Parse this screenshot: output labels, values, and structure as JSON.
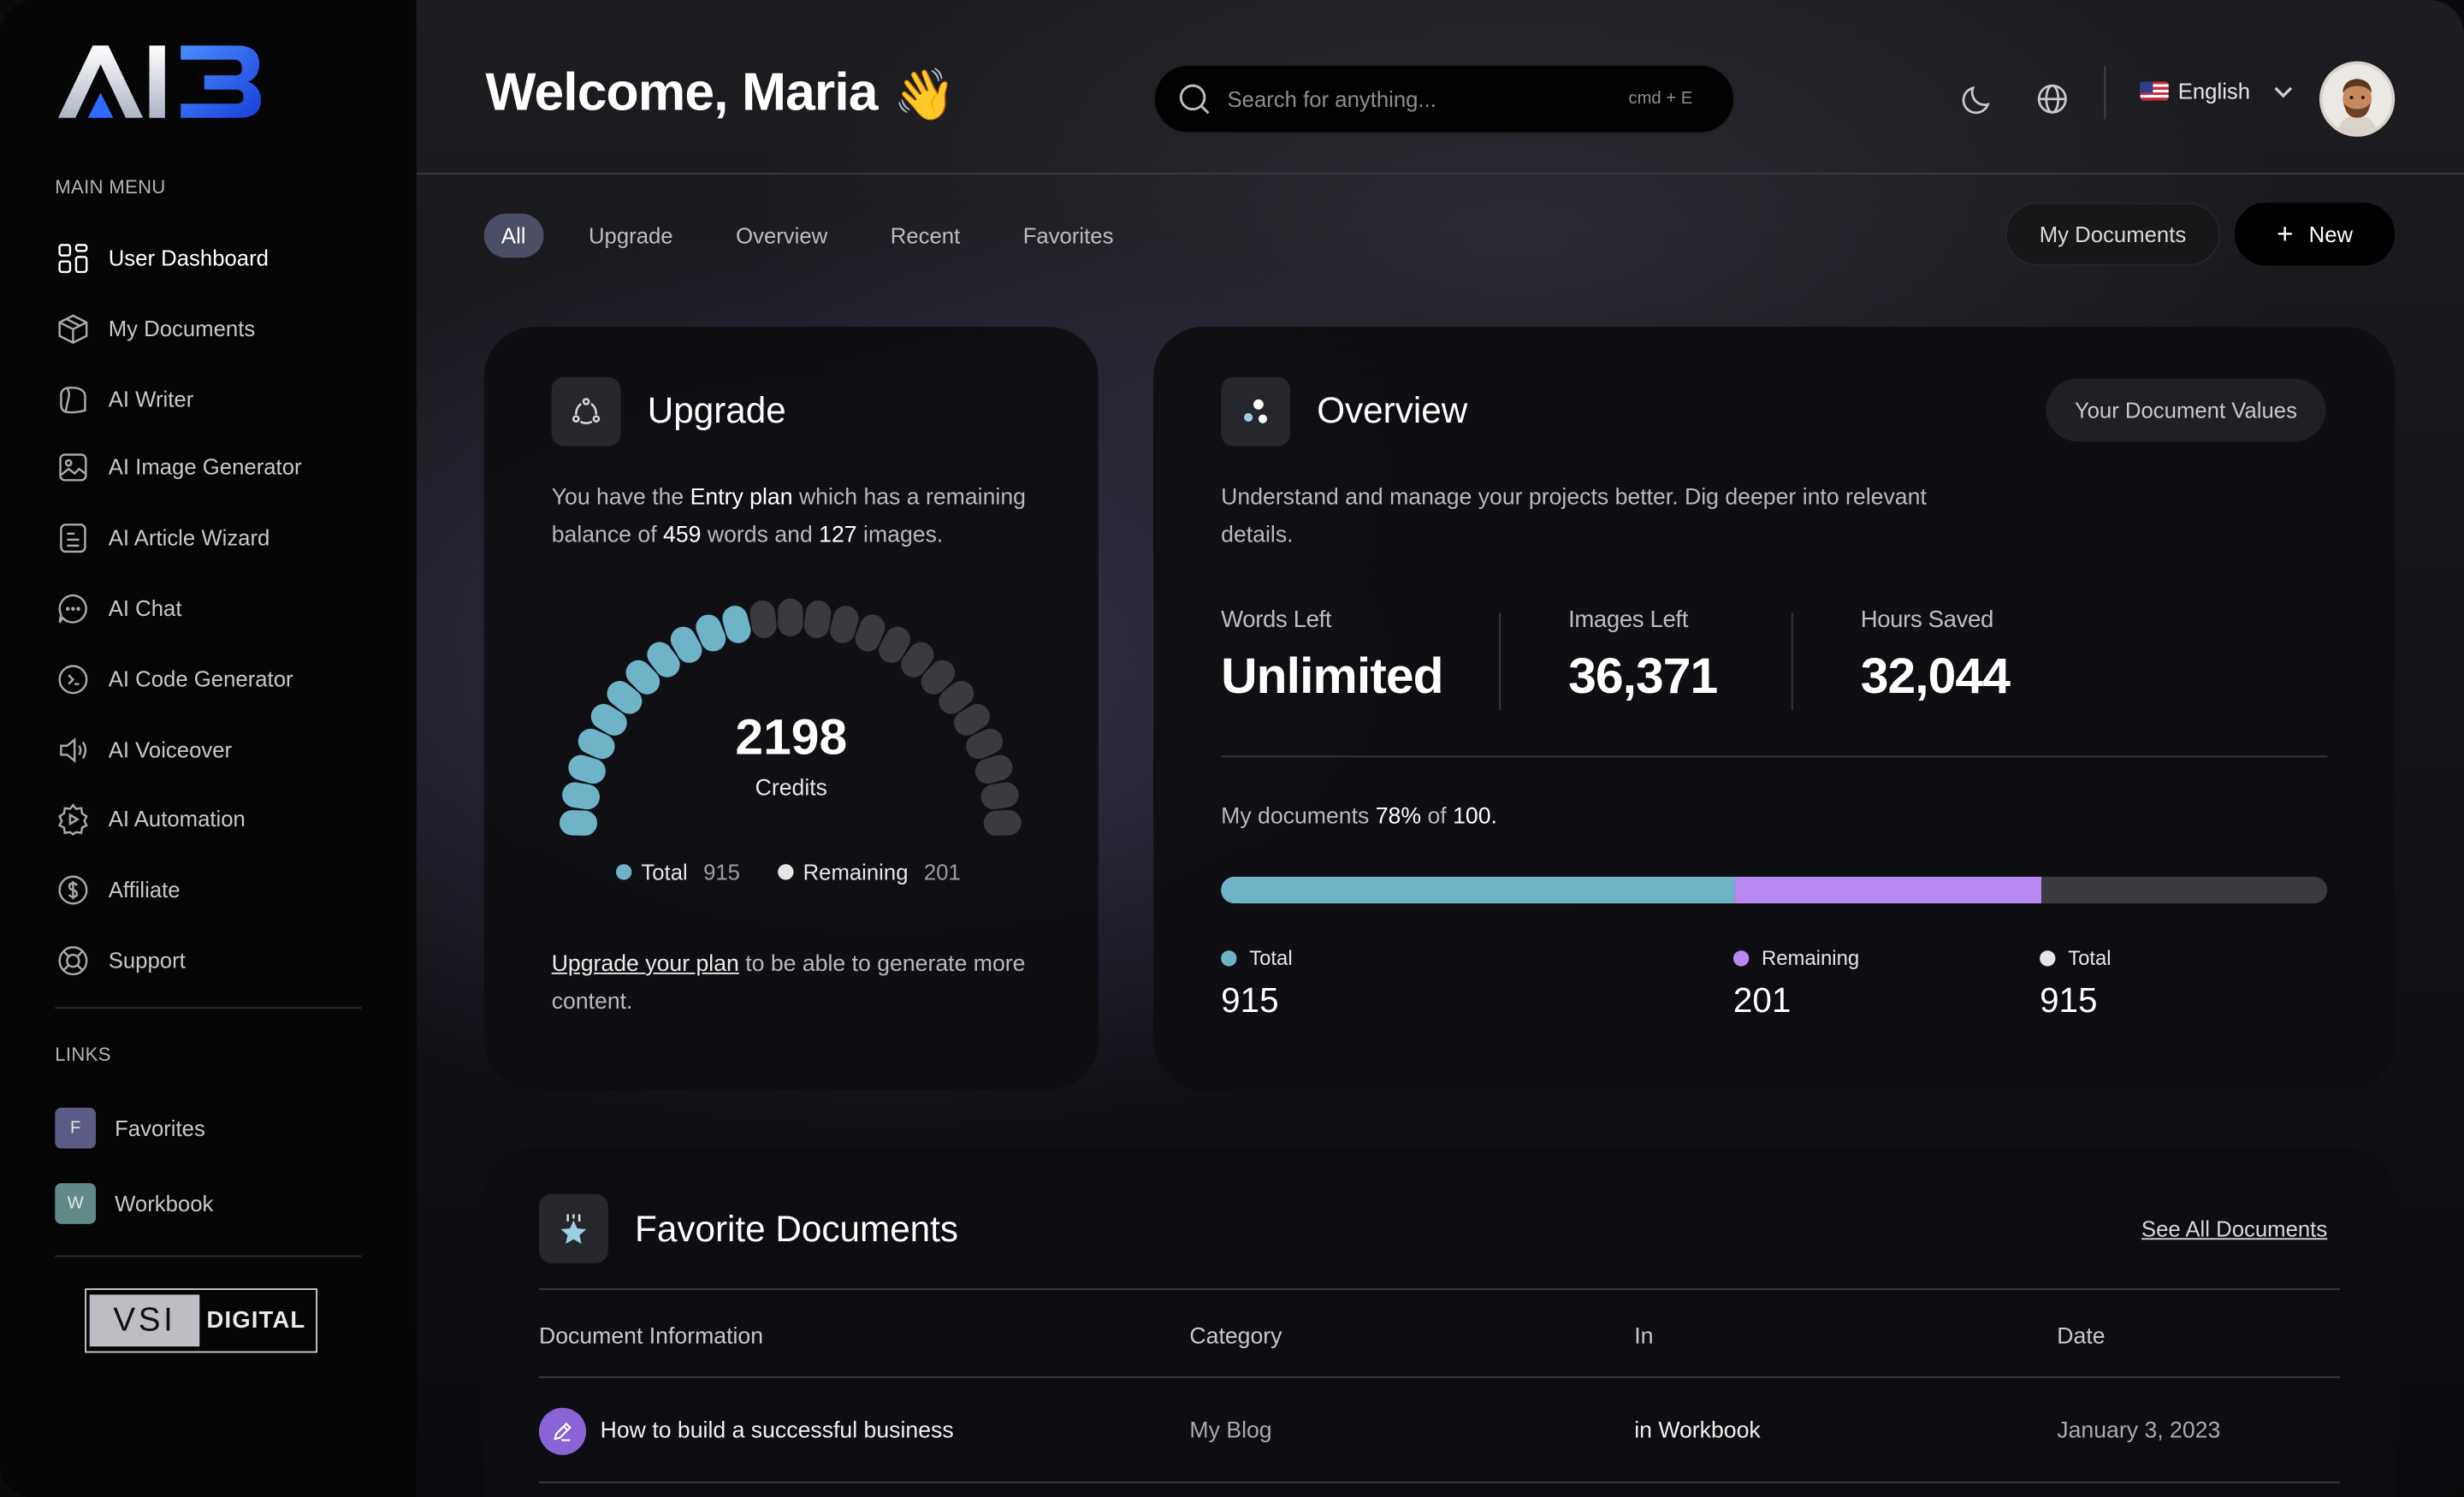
{
  "brand": {
    "logo_text": "AI3"
  },
  "sidebar": {
    "main_menu_label": "MAIN MENU",
    "items": [
      {
        "label": "User Dashboard",
        "icon": "dashboard-icon"
      },
      {
        "label": "My Documents",
        "icon": "box-icon"
      },
      {
        "label": "AI Writer",
        "icon": "writer-icon"
      },
      {
        "label": "AI Image Generator",
        "icon": "image-icon"
      },
      {
        "label": "AI Article Wizard",
        "icon": "article-icon"
      },
      {
        "label": "AI Chat",
        "icon": "chat-icon"
      },
      {
        "label": "AI Code Generator",
        "icon": "code-icon"
      },
      {
        "label": "AI Voiceover",
        "icon": "speaker-icon"
      },
      {
        "label": "AI Automation",
        "icon": "automation-icon"
      },
      {
        "label": "Affiliate",
        "icon": "dollar-icon"
      },
      {
        "label": "Support",
        "icon": "lifebuoy-icon"
      }
    ],
    "links_label": "LINKS",
    "links": [
      {
        "badge": "F",
        "label": "Favorites",
        "color": "#5b5c86"
      },
      {
        "badge": "W",
        "label": "Workbook",
        "color": "#5f8a88"
      }
    ],
    "partner": {
      "left": "VSI",
      "right": "DIGITAL"
    }
  },
  "header": {
    "welcome": "Welcome, Maria",
    "wave_emoji": "👋",
    "search_placeholder": "Search for anything...",
    "search_shortcut": "cmd + E",
    "language": "English"
  },
  "tabs": [
    "All",
    "Upgrade",
    "Overview",
    "Recent",
    "Favorites"
  ],
  "actions": {
    "my_documents": "My Documents",
    "new": "New",
    "new_icon": "+"
  },
  "upgrade": {
    "title": "Upgrade",
    "text_1": "You have the ",
    "plan": "Entry plan",
    "text_2": " which has a remaining balance of ",
    "words": "459",
    "text_3": " words and ",
    "images": "127",
    "text_4": " images.",
    "credits": "2198",
    "credits_label": "Credits",
    "gauge_filled_fraction": 0.44,
    "legend_total_label": "Total",
    "legend_total_value": "915",
    "legend_remaining_label": "Remaining",
    "legend_remaining_value": "201",
    "cta_link": "Upgrade your plan",
    "cta_rest": " to be able to generate more content."
  },
  "overview": {
    "title": "Overview",
    "pill": "Your Document Values",
    "description": "Understand and manage your projects better. Dig deeper into relevant details.",
    "stats": [
      {
        "label": "Words Left",
        "value": "Unlimited"
      },
      {
        "label": "Images Left",
        "value": "36,371"
      },
      {
        "label": "Hours Saved",
        "value": "32,044"
      }
    ],
    "docs_prefix": "My documents ",
    "docs_percent": "78%",
    "docs_mid": " of ",
    "docs_total": "100.",
    "bar_segments": [
      {
        "fraction": 0.465,
        "color": "#6fb3c9"
      },
      {
        "fraction": 0.277,
        "color": "#b889f2"
      }
    ],
    "bar_legend": [
      {
        "label": "Total",
        "value": "915",
        "color": "#6fb3c9"
      },
      {
        "label": "Remaining",
        "value": "201",
        "color": "#b889f2"
      },
      {
        "label": "Total",
        "value": "915",
        "color": "#e6e6e6"
      }
    ]
  },
  "favorites": {
    "title": "Favorite Documents",
    "see_all": "See All Documents",
    "columns": [
      "Document Information",
      "Category",
      "In",
      "Date"
    ],
    "rows": [
      {
        "name": "How to build a successful business",
        "category": "My Blog",
        "in": "in Workbook",
        "date": "January 3, 2023"
      }
    ]
  },
  "colors": {
    "accent_blue": "#6fb3c9",
    "accent_purple": "#b889f2",
    "tab_active": "#4a4f66"
  }
}
